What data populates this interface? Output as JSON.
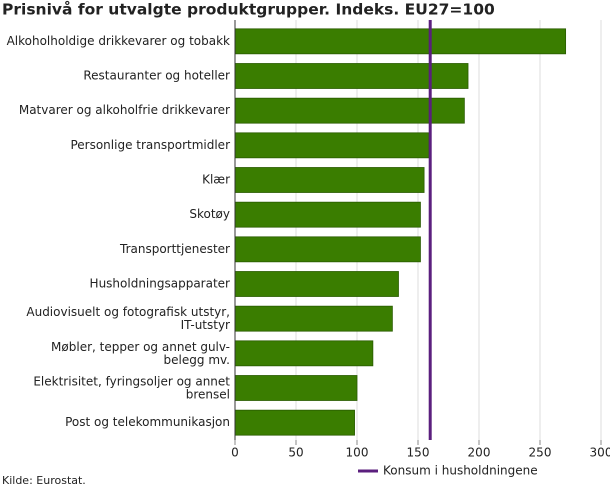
{
  "chart_data": {
    "type": "hbar",
    "title": "Prisnivå for utvalgte produktgrupper. Indeks. EU27=100",
    "categories": [
      "Alkoholholdige drikkevarer og tobakk",
      "Restauranter og hoteller",
      "Matvarer og alkoholfrie drikkevarer",
      "Personlige transportmidler",
      "Klær",
      "Skotøy",
      "Transporttjenester",
      "Husholdningsapparater",
      "Audiovisuelt og fotografisk utstyr,\nIT-utstyr",
      "Møbler, tepper og annet gulv-\nbelegg mv.",
      "Elektrisitet, fyringsoljer og annet\nbrensel",
      "Post og telekommunikasjon"
    ],
    "values": [
      271,
      191,
      188,
      159,
      155,
      152,
      152,
      134,
      129,
      113,
      100,
      98
    ],
    "color": "#3a7d00",
    "xlim": [
      0,
      300
    ],
    "xticks": [
      0,
      50,
      100,
      150,
      200,
      250,
      300
    ],
    "grid": true,
    "reference_line": {
      "name": "Konsum i husholdningene",
      "value": 160,
      "color": "#5b1f7e"
    },
    "source": "Kilde: Eurostat."
  }
}
